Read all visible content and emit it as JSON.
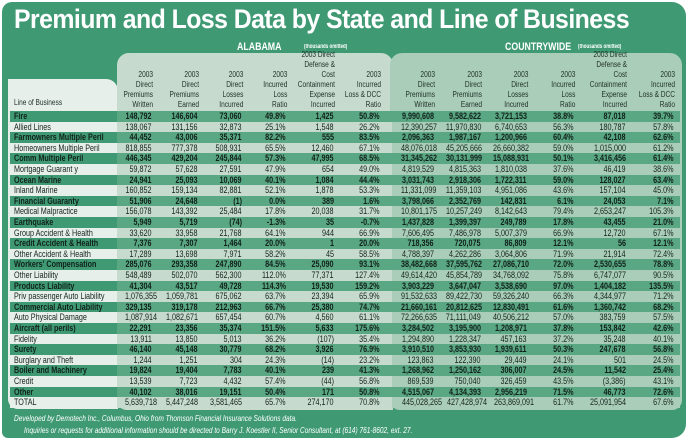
{
  "title": "Premium and Loss Data by State and Line of Business",
  "sections": {
    "alabama": {
      "label": "ALABAMA",
      "note": "(thousands omitted)"
    },
    "countrywide": {
      "label": "COUNTRYWIDE",
      "note": "(thousands omitted)"
    }
  },
  "line_of_business_header": "Line of Business",
  "alabama_headers": [
    "2003\nDirect\nPremiums\nWritten",
    "2003\nDirect\nPremiums\nEarned",
    "2003\nDirect\nLosses\nIncurred",
    "2003\nIncurred\nLoss\nRatio",
    "2003 Direct\nDefense & Cost\nContainment\nExpense\nIncurred",
    "2003\nIncurred\nLoss & DCC\nRatio"
  ],
  "countrywide_headers": [
    "2003\nDirect\nPremiums\nWritten",
    "2003\nDirect\nPremiums\nEarned",
    "2003\nDirect\nLosses\nIncurred",
    "2003\nIncurred\nLoss\nRatio",
    "2003 Direct\nDefense & Cost\nContainment\nExpense\nIncurred",
    "2003\nIncurred\nLoss & DCC\nRatio"
  ],
  "rows": [
    {
      "line": "Fire",
      "al": [
        "148,792",
        "146,604",
        "73,060",
        "49.8%",
        "1,425",
        "50.8%"
      ],
      "cw": [
        "9,990,608",
        "9,582,622",
        "3,721,153",
        "38.8%",
        "87,018",
        "39.7%"
      ]
    },
    {
      "line": "Allied Lines",
      "al": [
        "138,067",
        "131,156",
        "32,873",
        "25.1%",
        "1,548",
        "26.2%"
      ],
      "cw": [
        "12,390,257",
        "11,970,830",
        "6,740,653",
        "56.3%",
        "180,787",
        "57.8%"
      ]
    },
    {
      "line": "Farmowners Multiple Peril",
      "al": [
        "44,452",
        "43,006",
        "35,371",
        "82.2%",
        "555",
        "83.5%"
      ],
      "cw": [
        "2,096,363",
        "1,987,167",
        "1,200,966",
        "60.4%",
        "42,108",
        "62.6%"
      ]
    },
    {
      "line": "Homeowners Multiple Peril",
      "al": [
        "818,855",
        "777,378",
        "508,931",
        "65.5%",
        "12,460",
        "67.1%"
      ],
      "cw": [
        "48,076,018",
        "45,205,666",
        "26,660,382",
        "59.0%",
        "1,015,000",
        "61.2%"
      ]
    },
    {
      "line": "Comm Multiple Peril",
      "al": [
        "446,345",
        "429,204",
        "245,844",
        "57.3%",
        "47,995",
        "68.5%"
      ],
      "cw": [
        "31,345,262",
        "30,131,999",
        "15,088,931",
        "50.1%",
        "3,416,456",
        "61.4%"
      ]
    },
    {
      "line": "Mortgage Guarant y",
      "al": [
        "59,872",
        "57,628",
        "27,591",
        "47.9%",
        "654",
        "49.0%"
      ],
      "cw": [
        "4,819,529",
        "4,815,363",
        "1,810,038",
        "37.6%",
        "46,419",
        "38.6%"
      ]
    },
    {
      "line": "Ocean Marine",
      "al": [
        "24,941",
        "25,093",
        "10,069",
        "40.1%",
        "1,084",
        "44.4%"
      ],
      "cw": [
        "3,031,743",
        "2,918,306",
        "1,722,311",
        "59.0%",
        "128,027",
        "63.4%"
      ]
    },
    {
      "line": "Inland Marine",
      "al": [
        "160,852",
        "159,134",
        "82,881",
        "52.1%",
        "1,878",
        "53.3%"
      ],
      "cw": [
        "11,331,099",
        "11,359,103",
        "4,951,086",
        "43.6%",
        "157,104",
        "45.0%"
      ]
    },
    {
      "line": "Financial Guaranty",
      "al": [
        "51,906",
        "24,648",
        "(1)",
        "0.0%",
        "389",
        "1.6%"
      ],
      "cw": [
        "3,798,066",
        "2,352,769",
        "142,831",
        "6.1%",
        "24,053",
        "7.1%"
      ]
    },
    {
      "line": "Medical Malpractice",
      "al": [
        "156,078",
        "143,392",
        "25,484",
        "17.8%",
        "20,038",
        "31.7%"
      ],
      "cw": [
        "10,801,175",
        "10,257,249",
        "8,142,643",
        "79.4%",
        "2,653,247",
        "105.3%"
      ]
    },
    {
      "line": "Earthquake",
      "al": [
        "5,949",
        "5,719",
        "(74)",
        "-1.3%",
        "35",
        "-0.7%"
      ],
      "cw": [
        "1,437,828",
        "1,399,397",
        "249,789",
        "17.8%",
        "43,455",
        "21.0%"
      ]
    },
    {
      "line": "Group Accident & Health",
      "al": [
        "33,620",
        "33,958",
        "21,768",
        "64.1%",
        "944",
        "66.9%"
      ],
      "cw": [
        "7,606,495",
        "7,486,978",
        "5,007,379",
        "66.9%",
        "12,720",
        "67.1%"
      ]
    },
    {
      "line": "Credit Accident & Health",
      "al": [
        "7,376",
        "7,307",
        "1,464",
        "20.0%",
        "1",
        "20.0%"
      ],
      "cw": [
        "718,356",
        "720,075",
        "86,809",
        "12.1%",
        "56",
        "12.1%"
      ]
    },
    {
      "line": "Other Accident & Health",
      "al": [
        "17,289",
        "13,698",
        "7,971",
        "58.2%",
        "45",
        "58.5%"
      ],
      "cw": [
        "4,788,397",
        "4,262,286",
        "3,064,806",
        "71.9%",
        "21,914",
        "72.4%"
      ]
    },
    {
      "line": "Workers' Compensation",
      "al": [
        "285,076",
        "293,358",
        "247,890",
        "84.5%",
        "25,090",
        "93.1%"
      ],
      "cw": [
        "38,482,668",
        "37,595,762",
        "27,086,710",
        "72.0%",
        "2,530,655",
        "78.8%"
      ]
    },
    {
      "line": "Other Liability",
      "al": [
        "548,489",
        "502,070",
        "562,300",
        "112.0%",
        "77,371",
        "127.4%"
      ],
      "cw": [
        "49,614,420",
        "45,854,789",
        "34,768,092",
        "75.8%",
        "6,747,077",
        "90.5%"
      ]
    },
    {
      "line": "Products Liability",
      "al": [
        "41,304",
        "43,517",
        "49,728",
        "114.3%",
        "19,530",
        "159.2%"
      ],
      "cw": [
        "3,903,229",
        "3,647,047",
        "3,538,690",
        "97.0%",
        "1,404,182",
        "135.5%"
      ]
    },
    {
      "line": "Priv passenger Auto Liability",
      "al": [
        "1,076,355",
        "1,059,781",
        "675,062",
        "63.7%",
        "23,394",
        "65.9%"
      ],
      "cw": [
        "91,532,633",
        "89,422,730",
        "59,326,240",
        "66.3%",
        "4,344,977",
        "71.2%"
      ]
    },
    {
      "line": "Commercial Auto Liability",
      "al": [
        "329,135",
        "319,178",
        "212,963",
        "66.7%",
        "25,380",
        "74.7%"
      ],
      "cw": [
        "21,660,161",
        "20,812,625",
        "12,830,491",
        "61.6%",
        "1,360,742",
        "68.2%"
      ]
    },
    {
      "line": "Auto Physical Damage",
      "al": [
        "1,087,914",
        "1,082,671",
        "657,454",
        "60.7%",
        "4,560",
        "61.1%"
      ],
      "cw": [
        "72,266,635",
        "71,111,049",
        "40,506,212",
        "57.0%",
        "383,759",
        "57.5%"
      ]
    },
    {
      "line": "Aircraft (all perils)",
      "al": [
        "22,291",
        "23,356",
        "35,374",
        "151.5%",
        "5,633",
        "175.6%"
      ],
      "cw": [
        "3,284,502",
        "3,195,900",
        "1,208,971",
        "37.8%",
        "153,842",
        "42.6%"
      ]
    },
    {
      "line": "Fidelity",
      "al": [
        "13,911",
        "13,850",
        "5,013",
        "36.2%",
        "(107)",
        "35.4%"
      ],
      "cw": [
        "1,294,890",
        "1,228,347",
        "457,163",
        "37.2%",
        "35,248",
        "40.1%"
      ]
    },
    {
      "line": "Surety",
      "al": [
        "46,140",
        "45,148",
        "30,779",
        "68.2%",
        "3,926",
        "76.9%"
      ],
      "cw": [
        "3,910,510",
        "3,853,930",
        "1,939,611",
        "50.3%",
        "247,678",
        "56.8%"
      ]
    },
    {
      "line": "Burglary and Theft",
      "al": [
        "1,244",
        "1,251",
        "304",
        "24.3%",
        "(14)",
        "23.2%"
      ],
      "cw": [
        "123,863",
        "122,390",
        "29,449",
        "24.1%",
        "501",
        "24.5%"
      ]
    },
    {
      "line": "Boiler and Machinery",
      "al": [
        "19,824",
        "19,404",
        "7,783",
        "40.1%",
        "239",
        "41.3%"
      ],
      "cw": [
        "1,268,962",
        "1,250,162",
        "306,007",
        "24.5%",
        "11,542",
        "25.4%"
      ]
    },
    {
      "line": "Credit",
      "al": [
        "13,539",
        "7,723",
        "4,432",
        "57.4%",
        "(44)",
        "56.8%"
      ],
      "cw": [
        "869,539",
        "750,040",
        "326,459",
        "43.5%",
        "(3,386)",
        "43.1%"
      ]
    },
    {
      "line": "Other",
      "al": [
        "40,102",
        "38,016",
        "19,151",
        "50.4%",
        "171",
        "50.8%"
      ],
      "cw": [
        "4,515,067",
        "4,134,393",
        "2,956,219",
        "71.5%",
        "46,773",
        "72.6%"
      ]
    },
    {
      "line": "TOTAL",
      "al": [
        "5,639,718",
        "5,447,248",
        "3,581,465",
        "65.7%",
        "274,170",
        "70.8%"
      ],
      "cw": [
        "445,028,265",
        "427,428,974",
        "263,869,091",
        "61.7%",
        "25,091,954",
        "67.6%"
      ]
    }
  ],
  "footer": {
    "line1": "Developed by Demotech Inc., Columbus, Ohio from Thomson Financial Insurance Solutions data.",
    "line2": "Inquiries or requests for additional information should be directed to Barry J. Koestler II, Senior Consultant, at (614) 761-8602, ext. 27."
  },
  "colors": {
    "frame": "#3f9a74",
    "dark_row": "#5aa783",
    "alabama_panel": "#c6dacd",
    "countrywide_panel": "#a9cdb8",
    "lob_panel": "#e6efea"
  }
}
